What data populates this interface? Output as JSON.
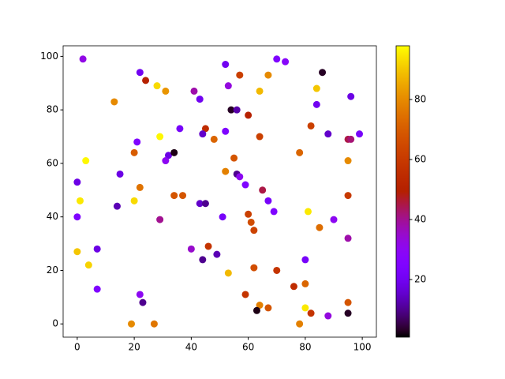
{
  "chart_data": {
    "type": "scatter",
    "colormap": "gnuplot",
    "x": [
      2,
      22,
      24,
      28,
      31,
      13,
      41,
      43,
      52,
      53,
      57,
      67,
      70,
      73,
      86,
      84,
      64,
      84,
      96,
      54,
      56,
      60,
      82,
      88,
      99,
      95,
      96,
      21,
      29,
      36,
      45,
      44,
      48,
      52,
      64,
      78,
      3,
      20,
      32,
      31,
      34,
      55,
      52,
      56,
      57,
      59,
      65,
      0,
      15,
      22,
      95,
      95,
      1,
      20,
      34,
      37,
      14,
      43,
      45,
      67,
      69,
      60,
      61,
      62,
      81,
      90,
      85,
      0,
      29,
      51,
      95,
      7,
      0,
      40,
      46,
      49,
      44,
      80,
      4,
      62,
      70,
      53,
      7,
      22,
      23,
      59,
      76,
      80,
      64,
      67,
      63,
      80,
      82,
      88,
      95,
      95,
      19,
      27,
      78
    ],
    "y": [
      99,
      94,
      91,
      89,
      87,
      83,
      87,
      84,
      97,
      89,
      93,
      93,
      99,
      98,
      94,
      88,
      87,
      82,
      85,
      80,
      80,
      78,
      74,
      71,
      71,
      69,
      69,
      68,
      70,
      73,
      73,
      71,
      69,
      72,
      70,
      64,
      61,
      64,
      63,
      61,
      64,
      62,
      57,
      56,
      55,
      52,
      50,
      53,
      56,
      51,
      61,
      48,
      46,
      46,
      48,
      48,
      44,
      45,
      45,
      46,
      42,
      41,
      38,
      35,
      42,
      39,
      36,
      40,
      39,
      40,
      32,
      28,
      27,
      28,
      29,
      26,
      24,
      24,
      22,
      21,
      20,
      19,
      13,
      11,
      8,
      11,
      14,
      15,
      7,
      6,
      5,
      6,
      4,
      3,
      4,
      8,
      0,
      0,
      0
    ],
    "c": [
      32,
      20,
      50,
      93,
      82,
      80,
      38,
      20,
      20,
      33,
      62,
      80,
      25,
      28,
      3,
      90,
      88,
      20,
      18,
      3,
      12,
      50,
      62,
      15,
      22,
      45,
      42,
      25,
      97,
      22,
      55,
      15,
      72,
      25,
      62,
      72,
      97,
      70,
      18,
      30,
      2,
      68,
      78,
      10,
      30,
      25,
      45,
      18,
      18,
      75,
      80,
      60,
      95,
      93,
      68,
      68,
      13,
      15,
      10,
      22,
      25,
      62,
      66,
      63,
      95,
      30,
      74,
      25,
      40,
      22,
      38,
      18,
      90,
      35,
      58,
      13,
      10,
      22,
      92,
      66,
      58,
      88,
      25,
      30,
      10,
      58,
      55,
      72,
      78,
      68,
      2,
      95,
      58,
      33,
      3,
      68,
      80,
      76,
      78
    ],
    "xlim": [
      -4.95,
      104.95
    ],
    "ylim": [
      -4.95,
      103.95
    ],
    "clim": [
      0.8,
      97.9
    ],
    "xticks": [
      0,
      20,
      40,
      60,
      80,
      100
    ],
    "yticks": [
      0,
      20,
      40,
      60,
      80,
      100
    ],
    "cticks": [
      20,
      40,
      60,
      80
    ]
  }
}
